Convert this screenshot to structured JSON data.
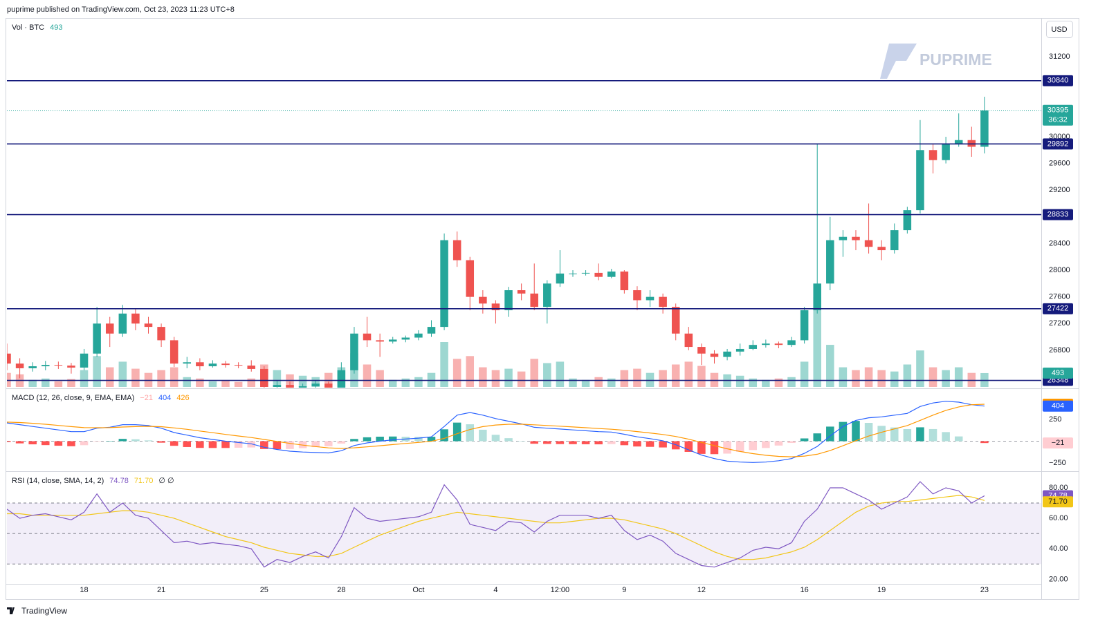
{
  "header": "puprime published on TradingView.com, Oct 23, 2023 11:23 UTC+8",
  "currency": "USD",
  "watermark": "PUPRIME",
  "footer": "TradingView",
  "chart_data": [
    {
      "type": "candlestick",
      "x": [
        "09-15 00:00",
        "09-15 12:00",
        "09-16 00:00",
        "09-16 12:00",
        "09-17 00:00",
        "09-17 12:00",
        "09-18 00:00",
        "09-18 12:00",
        "09-19 00:00",
        "09-19 12:00",
        "09-20 00:00",
        "09-20 12:00",
        "09-21 00:00",
        "09-21 12:00",
        "09-22 00:00",
        "09-22 12:00",
        "09-23 00:00",
        "09-23 12:00",
        "09-24 00:00",
        "09-24 12:00",
        "09-25 00:00",
        "09-25 12:00",
        "09-26 00:00",
        "09-26 12:00",
        "09-27 00:00",
        "09-27 12:00",
        "09-28 00:00",
        "09-28 12:00",
        "09-29 00:00",
        "09-29 12:00",
        "09-30 00:00",
        "09-30 12:00",
        "10-01 00:00",
        "10-01 12:00",
        "10-02 00:00",
        "10-02 12:00",
        "10-03 00:00",
        "10-03 12:00",
        "10-04 00:00",
        "10-04 12:00",
        "10-05 00:00",
        "10-05 12:00",
        "10-06 00:00",
        "10-06 12:00",
        "10-07 00:00",
        "10-07 12:00",
        "10-08 00:00",
        "10-08 12:00",
        "10-09 00:00",
        "10-09 12:00",
        "10-10 00:00",
        "10-10 12:00",
        "10-11 00:00",
        "10-11 12:00",
        "10-12 00:00",
        "10-12 12:00",
        "10-13 00:00",
        "10-13 12:00",
        "10-14 00:00",
        "10-14 12:00",
        "10-15 00:00",
        "10-15 12:00",
        "10-16 00:00",
        "10-16 12:00",
        "10-17 00:00",
        "10-17 12:00",
        "10-18 00:00",
        "10-18 12:00",
        "10-19 00:00",
        "10-19 12:00",
        "10-20 00:00",
        "10-20 12:00",
        "10-21 00:00",
        "10-21 12:00",
        "10-22 00:00",
        "10-22 12:00",
        "10-23 00:00"
      ],
      "xlim": [
        "09-15 00:00",
        "10-25 05:00"
      ],
      "xticks": [
        {
          "value": "09-18",
          "label": "18"
        },
        {
          "value": "09-21",
          "label": "21"
        },
        {
          "value": "09-25",
          "label": "25"
        },
        {
          "value": "09-28",
          "label": "28"
        },
        {
          "value": "10-01",
          "label": "Oct"
        },
        {
          "value": "10-04",
          "label": "4"
        },
        {
          "value": "10-06 12:00",
          "label": "12:00"
        },
        {
          "value": "10-09",
          "label": "9"
        },
        {
          "value": "10-12",
          "label": "12"
        },
        {
          "value": "10-16",
          "label": "16"
        },
        {
          "value": "10-19",
          "label": "19"
        },
        {
          "value": "10-23",
          "label": "23"
        }
      ],
      "open": [
        26750,
        26600,
        26530,
        26560,
        26580,
        26570,
        26540,
        26750,
        27200,
        27050,
        27350,
        27200,
        27150,
        26950,
        26600,
        26620,
        26560,
        26600,
        26580,
        26570,
        26520,
        26250,
        26280,
        26220,
        26260,
        26300,
        26200,
        26500,
        27050,
        26950,
        26930,
        26960,
        26990,
        27050,
        27150,
        28450,
        28150,
        27600,
        27500,
        27400,
        27700,
        27650,
        27450,
        27800,
        27950,
        27950,
        27960,
        27900,
        27980,
        27700,
        27550,
        27600,
        27450,
        27050,
        26850,
        26750,
        26700,
        26780,
        26820,
        26880,
        26900,
        26880,
        26950,
        27400,
        27800,
        28450,
        28500,
        28450,
        28350,
        28300,
        28600,
        28900,
        29800,
        29650,
        29900,
        29950,
        29850
      ],
      "high": [
        26900,
        26680,
        26620,
        26640,
        26630,
        26610,
        26820,
        27450,
        27300,
        27480,
        27420,
        27300,
        27200,
        27000,
        26700,
        26680,
        26650,
        26640,
        26620,
        26650,
        26560,
        26350,
        26330,
        26300,
        26350,
        26330,
        26620,
        27150,
        27300,
        27050,
        27000,
        27020,
        27100,
        27250,
        28550,
        28580,
        28200,
        27700,
        27550,
        27750,
        27800,
        28100,
        27850,
        28300,
        28000,
        28000,
        28100,
        28020,
        28000,
        27760,
        27700,
        27650,
        27500,
        27150,
        26900,
        26800,
        26820,
        26900,
        26950,
        26960,
        26930,
        27000,
        27450,
        29892,
        28800,
        28600,
        28600,
        29000,
        28450,
        28700,
        28950,
        30250,
        29900,
        30000,
        30350,
        30150,
        30600
      ],
      "low": [
        26500,
        26380,
        26480,
        26500,
        26520,
        26450,
        26500,
        26700,
        26850,
        27000,
        27100,
        27050,
        26850,
        26550,
        26530,
        26500,
        26540,
        26540,
        26530,
        26480,
        26100,
        26150,
        26170,
        26180,
        26220,
        26130,
        26180,
        26450,
        26850,
        26700,
        26900,
        26920,
        26950,
        27000,
        27100,
        28050,
        27400,
        27350,
        27200,
        27300,
        27550,
        27400,
        27200,
        27750,
        27900,
        27920,
        27850,
        27880,
        27650,
        27400,
        27450,
        27350,
        26950,
        26800,
        26580,
        26600,
        26650,
        26720,
        26800,
        26840,
        26830,
        26850,
        26900,
        27350,
        27700,
        28200,
        28300,
        28250,
        28150,
        28250,
        28550,
        28850,
        29450,
        29600,
        29850,
        29700,
        29750
      ],
      "close": [
        26600,
        26530,
        26560,
        26580,
        26570,
        26540,
        26750,
        27200,
        27050,
        27350,
        27200,
        27150,
        26950,
        26600,
        26620,
        26560,
        26600,
        26580,
        26570,
        26520,
        26250,
        26280,
        26220,
        26260,
        26300,
        26200,
        26500,
        27050,
        26950,
        26930,
        26960,
        26990,
        27050,
        27150,
        28450,
        28150,
        27600,
        27500,
        27400,
        27700,
        27650,
        27450,
        27800,
        27950,
        27950,
        27960,
        27900,
        27980,
        27700,
        27550,
        27600,
        27450,
        27050,
        26850,
        26750,
        26700,
        26780,
        26820,
        26880,
        26900,
        26880,
        26950,
        27400,
        27800,
        28450,
        28500,
        28450,
        28350,
        28300,
        28600,
        28900,
        29800,
        29650,
        29900,
        29950,
        29850,
        30395
      ],
      "volume": [
        500,
        450,
        250,
        300,
        200,
        280,
        600,
        1100,
        700,
        900,
        650,
        500,
        600,
        700,
        350,
        300,
        200,
        220,
        180,
        300,
        800,
        600,
        450,
        400,
        350,
        500,
        700,
        1200,
        800,
        600,
        250,
        300,
        350,
        500,
        1600,
        1000,
        1100,
        700,
        600,
        650,
        550,
        1000,
        850,
        900,
        300,
        250,
        350,
        300,
        600,
        650,
        500,
        600,
        800,
        900,
        750,
        500,
        450,
        400,
        300,
        250,
        300,
        350,
        900,
        3200,
        1500,
        700,
        600,
        700,
        600,
        550,
        800,
        1300,
        700,
        600,
        700,
        500,
        493
      ],
      "volume_label": "Vol · BTC",
      "up_color": "#26a69a",
      "down_color": "#ef5350",
      "ylim": [
        26250,
        31760
      ],
      "yticks": [
        31200,
        30000,
        29600,
        29200,
        28400,
        28000,
        27600,
        27200,
        26800
      ],
      "levels": [
        30840,
        29892,
        28833,
        27422,
        26348
      ],
      "level_color": "#151b7c",
      "countdown": "36:32"
    },
    {
      "type": "macd",
      "title": "MACD (12, 26, close, 9, EMA, EMA)",
      "hist_label": "−21",
      "macd": [
        210,
        190,
        170,
        150,
        130,
        110,
        110,
        150,
        160,
        190,
        190,
        180,
        150,
        100,
        70,
        40,
        20,
        0,
        -15,
        -30,
        -70,
        -95,
        -115,
        -125,
        -130,
        -135,
        -110,
        -50,
        -20,
        0,
        15,
        25,
        35,
        50,
        170,
        300,
        330,
        300,
        260,
        230,
        200,
        160,
        150,
        140,
        130,
        120,
        110,
        105,
        80,
        50,
        30,
        5,
        -40,
        -100,
        -160,
        -200,
        -230,
        -240,
        -245,
        -240,
        -225,
        -200,
        -140,
        -60,
        60,
        170,
        240,
        270,
        280,
        300,
        320,
        400,
        440,
        460,
        450,
        420,
        404
      ],
      "signal": [
        220,
        215,
        206,
        195,
        182,
        168,
        156,
        155,
        156,
        163,
        168,
        171,
        167,
        153,
        137,
        117,
        98,
        78,
        60,
        42,
        20,
        -3,
        -25,
        -45,
        -62,
        -77,
        -83,
        -76,
        -65,
        -52,
        -39,
        -26,
        -14,
        -1,
        33,
        86,
        135,
        168,
        186,
        195,
        196,
        189,
        181,
        173,
        164,
        155,
        146,
        138,
        126,
        111,
        95,
        77,
        54,
        23,
        -14,
        -51,
        -87,
        -118,
        -143,
        -162,
        -175,
        -180,
        -172,
        -150,
        -108,
        -52,
        6,
        59,
        103,
        142,
        180,
        240,
        300,
        355,
        395,
        420,
        426
      ],
      "histogram": [
        -10,
        -25,
        -36,
        -45,
        -52,
        -58,
        -46,
        -5,
        4,
        27,
        22,
        9,
        -17,
        -53,
        -67,
        -77,
        -78,
        -78,
        -75,
        -72,
        -90,
        -92,
        -90,
        -80,
        -68,
        -58,
        -27,
        26,
        45,
        52,
        54,
        51,
        49,
        51,
        137,
        214,
        195,
        132,
        74,
        35,
        4,
        -29,
        -31,
        -33,
        -34,
        -35,
        -36,
        -33,
        -46,
        -61,
        -65,
        -72,
        -94,
        -123,
        -146,
        -149,
        -143,
        -122,
        -102,
        -78,
        -50,
        -20,
        32,
        90,
        168,
        222,
        234,
        211,
        177,
        158,
        140,
        160,
        140,
        105,
        55,
        0,
        -21
      ],
      "macd_color": "#2962ff",
      "signal_color": "#ff9800",
      "ylim": [
        -330,
        585
      ],
      "yticks": [
        250,
        {
          "value": -250,
          "label": "−250"
        }
      ],
      "hlines": [
        0
      ]
    },
    {
      "type": "rsi",
      "title": "RSI (14, close, SMA, 14, 2)",
      "rsi": [
        66,
        60,
        62,
        63,
        61,
        59,
        64,
        76,
        64,
        70,
        62,
        60,
        52,
        44,
        45,
        43,
        44,
        43,
        42,
        40,
        28,
        33,
        31,
        35,
        38,
        34,
        48,
        67,
        60,
        58,
        59,
        60,
        61,
        64,
        82,
        72,
        56,
        54,
        52,
        58,
        57,
        51,
        58,
        62,
        62,
        62,
        60,
        62,
        52,
        46,
        49,
        45,
        37,
        33,
        29,
        28,
        31,
        34,
        39,
        41,
        40,
        44,
        58,
        66,
        80,
        80,
        76,
        72,
        66,
        70,
        74,
        84,
        76,
        80,
        78,
        70,
        74.78
      ],
      "ma": [
        63,
        63,
        62,
        62,
        62,
        62,
        62,
        63,
        64,
        65,
        65,
        64,
        62,
        60,
        57,
        54,
        51,
        48,
        46,
        44,
        41,
        39,
        37,
        36,
        35,
        35,
        37,
        41,
        45,
        49,
        52,
        55,
        58,
        60,
        62,
        64,
        63,
        62,
        61,
        60,
        59,
        58,
        57,
        57,
        58,
        59,
        60,
        60,
        59,
        57,
        55,
        53,
        50,
        46,
        42,
        38,
        35,
        33,
        33,
        34,
        36,
        38,
        41,
        46,
        52,
        58,
        64,
        68,
        70,
        71,
        71,
        72,
        73,
        74,
        75,
        74,
        71.7
      ],
      "ma_label": "71.70",
      "extra": "∅ ∅",
      "rsi_color": "#7e57c2",
      "ma_color": "#f2c617",
      "ylim": [
        17,
        89.5
      ],
      "yticks": [
        {
          "value": 80,
          "label": "80.00"
        },
        {
          "value": 60,
          "label": "60.00"
        },
        {
          "value": 40,
          "label": "40.00"
        },
        {
          "value": 20,
          "label": "20.00"
        }
      ],
      "hlines": [
        30,
        50,
        70
      ]
    }
  ]
}
